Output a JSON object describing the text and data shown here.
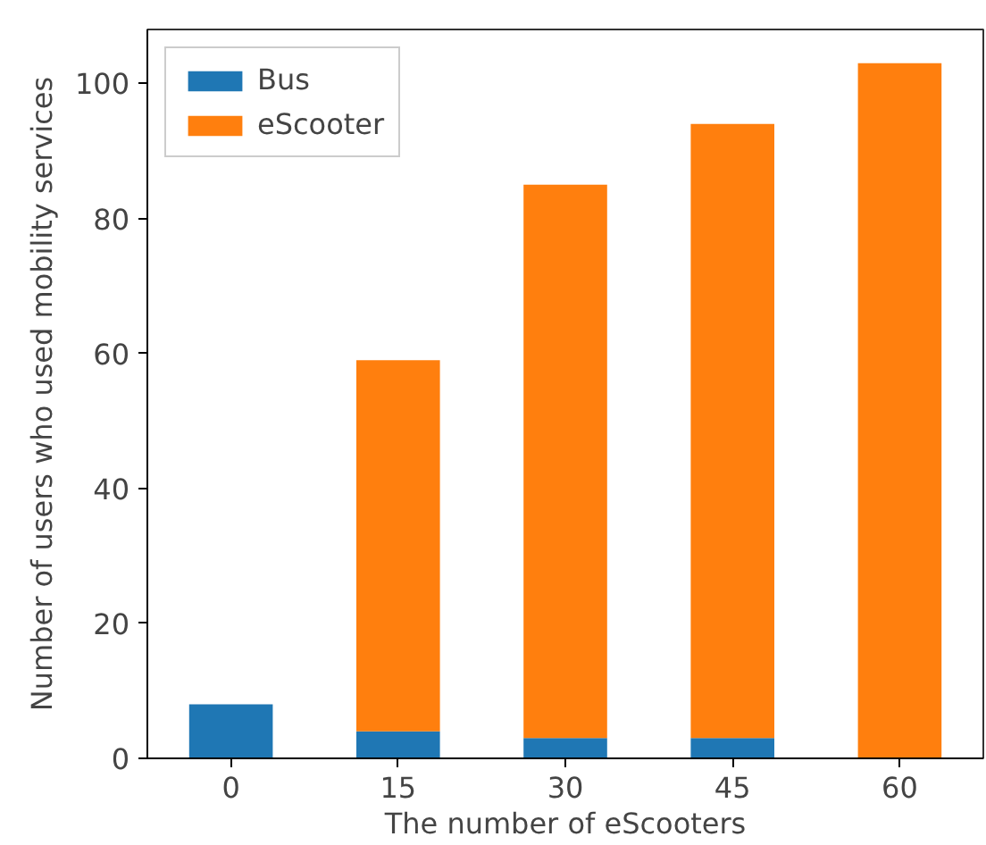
{
  "chart_data": {
    "type": "bar",
    "stacked": true,
    "xlabel": "The number of eScooters",
    "ylabel": "Number of users who used mobility services",
    "categories": [
      "0",
      "15",
      "30",
      "45",
      "60"
    ],
    "series": [
      {
        "name": "Bus",
        "color": "#1f77b4",
        "values": [
          8,
          4,
          3,
          3,
          0
        ]
      },
      {
        "name": "eScooter",
        "color": "#ff7f0e",
        "values": [
          0,
          55,
          82,
          91,
          103
        ]
      }
    ],
    "ylim": [
      0,
      108
    ],
    "yticks": [
      0,
      20,
      40,
      60,
      80,
      100
    ],
    "grid": false,
    "legend": "top left"
  }
}
